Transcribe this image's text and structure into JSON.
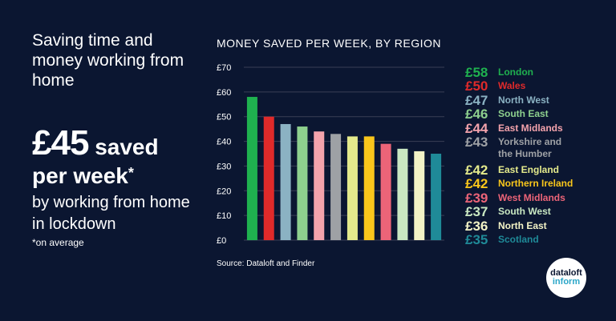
{
  "headline": "Saving time and money working from home",
  "stat": {
    "amount": "£45",
    "saved": "saved",
    "per_week": "per week",
    "asterisk": "*",
    "by_line": "by working from home in lockdown",
    "footnote": "*on average"
  },
  "source": "Source: Dataloft and Finder",
  "logo": {
    "line1": "dataloft",
    "line2": "inform"
  },
  "colors": {
    "background": "#0b1631",
    "axis_text": "#ffffff",
    "gridline": "#3a3f55",
    "logo_accent": "#2aa6c8"
  },
  "chart_data": {
    "type": "bar",
    "title": "MONEY SAVED PER WEEK, BY REGION",
    "xlabel": "",
    "ylabel": "",
    "ylim": [
      0,
      70
    ],
    "yticks": [
      "£0",
      "£10",
      "£20",
      "£30",
      "£40",
      "£50",
      "£60",
      "£70"
    ],
    "grid": true,
    "categories": [
      "London",
      "Wales",
      "North West",
      "South East",
      "East Midlands",
      "Yorkshire and the Humber",
      "East England",
      "Northern Ireland",
      "West Midlands",
      "South West",
      "North East",
      "Scotland"
    ],
    "values": [
      58,
      50,
      47,
      46,
      44,
      43,
      42,
      42,
      39,
      37,
      36,
      35
    ],
    "value_labels": [
      "£58",
      "£50",
      "£47",
      "£46",
      "£44",
      "£43",
      "£42",
      "£42",
      "£39",
      "£37",
      "£36",
      "£35"
    ],
    "bar_colors": [
      "#1fb14f",
      "#e02a2a",
      "#8bb2c3",
      "#8ed08e",
      "#f4a3ac",
      "#9ea1a5",
      "#e4ea8c",
      "#f9c61b",
      "#ec6478",
      "#c9e8c2",
      "#f3f3c6",
      "#1f8a98"
    ],
    "legend_colors": [
      "#1fb14f",
      "#e02a2a",
      "#8bb2c3",
      "#8ed08e",
      "#f4a3ac",
      "#9ea1a5",
      "#e4ea8c",
      "#f9c61b",
      "#ec6478",
      "#c9e8c2",
      "#f3f3c6",
      "#1f8a98"
    ],
    "legend_position": "right"
  }
}
